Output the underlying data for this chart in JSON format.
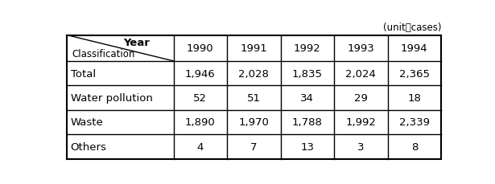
{
  "unit_label": "(unit：cases)",
  "header_row": [
    "",
    "1990",
    "1991",
    "1992",
    "1993",
    "1994"
  ],
  "rows": [
    [
      "Total",
      "1,946",
      "2,028",
      "1,835",
      "2,024",
      "2,365"
    ],
    [
      "Water pollution",
      "52",
      "51",
      "34",
      "29",
      "18"
    ],
    [
      "Waste",
      "1,890",
      "1,970",
      "1,788",
      "1,992",
      "2,339"
    ],
    [
      "Others",
      "4",
      "7",
      "13",
      "3",
      "8"
    ]
  ],
  "col0_label_top": "Year",
  "col0_label_bottom": "Classification",
  "bg_color": "#ffffff",
  "line_color": "#000000",
  "font_size": 9.5,
  "header_font_size": 9.5,
  "unit_font_size": 8.5
}
